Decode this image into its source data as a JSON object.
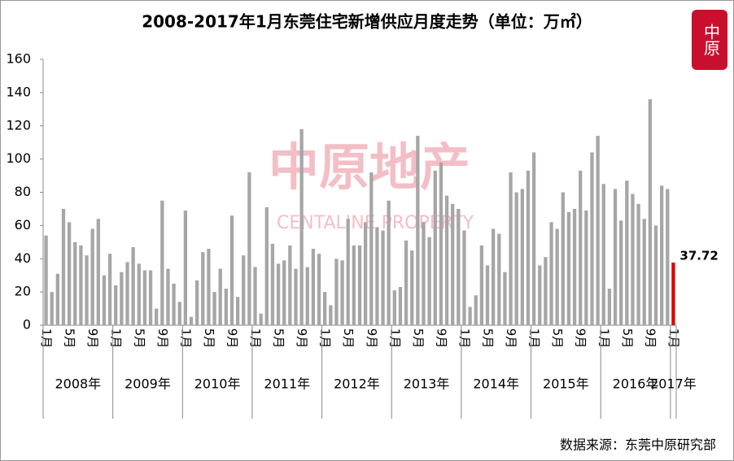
{
  "chart_data": {
    "type": "bar",
    "title": "2008-2017年1月东莞住宅新增供应月度走势（单位：万㎡）",
    "logo": "中原",
    "watermark": "中原地产",
    "watermark_en": "CENTALINE PROPERTY",
    "source": "数据来源：东莞中原研究部",
    "categories": [
      "1月",
      null,
      null,
      null,
      "5月",
      null,
      null,
      null,
      "9月",
      null,
      null,
      null,
      "1月",
      null,
      null,
      null,
      "5月",
      null,
      null,
      null,
      "9月",
      null,
      null,
      null,
      "1月",
      null,
      null,
      null,
      "5月",
      null,
      null,
      null,
      "9月",
      null,
      null,
      null,
      "1月",
      null,
      null,
      null,
      "5月",
      null,
      null,
      null,
      "9月",
      null,
      null,
      null,
      "1月",
      null,
      null,
      null,
      "5月",
      null,
      null,
      null,
      "9月",
      null,
      null,
      null,
      "1月",
      null,
      null,
      null,
      "5月",
      null,
      null,
      null,
      "9月",
      null,
      null,
      null,
      "1月",
      null,
      null,
      null,
      "5月",
      null,
      null,
      null,
      "9月",
      null,
      null,
      null,
      "1月",
      null,
      null,
      null,
      "5月",
      null,
      null,
      null,
      "9月",
      null,
      null,
      null,
      "1月",
      null,
      null,
      null,
      "5月",
      null,
      null,
      null,
      "9月",
      null,
      null,
      null,
      "1月"
    ],
    "groups": [
      "2008年",
      "2009年",
      "2010年",
      "2011年",
      "2012年",
      "2013年",
      "2014年",
      "2015年",
      "2016年",
      "2017年"
    ],
    "values": [
      54,
      20,
      31,
      70,
      62,
      50,
      48,
      42,
      58,
      64,
      30,
      43,
      24,
      32,
      38,
      47,
      37,
      33,
      33,
      10,
      75,
      34,
      25,
      14,
      69,
      5,
      27,
      44,
      46,
      20,
      34,
      22,
      66,
      17,
      42,
      92,
      35,
      7,
      71,
      49,
      37,
      39,
      48,
      34,
      118,
      35,
      46,
      43,
      20,
      12,
      40,
      39,
      64,
      48,
      48,
      62,
      92,
      59,
      57,
      75,
      21,
      23,
      51,
      45,
      114,
      62,
      53,
      93,
      98,
      78,
      73,
      70,
      57,
      11,
      18,
      48,
      36,
      58,
      55,
      32,
      92,
      80,
      82,
      93,
      104,
      36,
      41,
      62,
      58,
      80,
      68,
      70,
      93,
      69,
      104,
      114,
      85,
      22,
      82,
      63,
      87,
      79,
      73,
      64,
      136,
      60,
      84,
      82,
      37.72
    ],
    "color": "#a6a6a6",
    "last_color": "#e00000",
    "ylim": [
      0,
      160
    ],
    "yticks": [
      0,
      20,
      40,
      60,
      80,
      100,
      120,
      140,
      160
    ],
    "grid": false
  }
}
